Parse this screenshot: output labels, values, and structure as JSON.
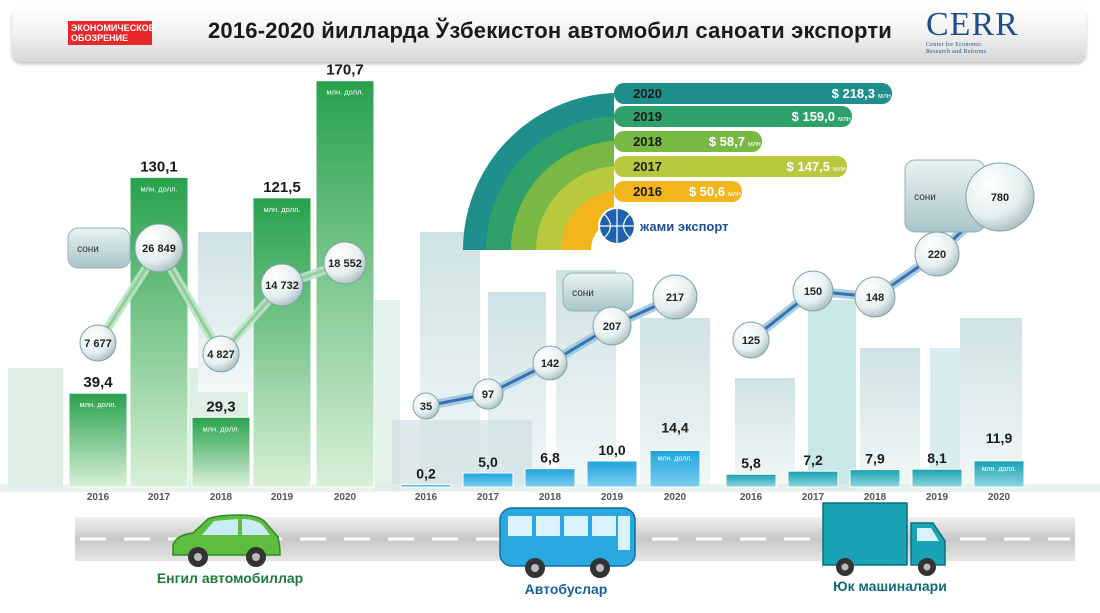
{
  "header": {
    "title": "2016-2020 йилларда Ўзбекистон автомобил саноати экспорти",
    "logo_left_line1": "ЭКОНОМИЧЕСКОЕ",
    "logo_left_line2": "ОБОЗРЕНИЕ",
    "logo_right_name": "CERR",
    "logo_right_line1": "Center for Economic",
    "logo_right_line2": "Research and Reforms"
  },
  "labels": {
    "count": "сони",
    "unit": "млн. долл.",
    "total_title": "жами экспорт",
    "total_unit": "млн."
  },
  "colors": {
    "cars": "#2ea44f",
    "buses": "#29a9e0",
    "trucks": "#1aa3b4",
    "count_line": "#3b6fb3",
    "y2020": "#1e8f8a",
    "y2019": "#2fa06a",
    "y2018": "#78b843",
    "y2017": "#b9c93d",
    "y2016": "#f2b51c"
  },
  "chart_data": [
    {
      "type": "bar",
      "title": "Енгил автомобиллар",
      "categories": [
        "2016",
        "2017",
        "2018",
        "2019",
        "2020"
      ],
      "series": [
        {
          "values": [
            39.4,
            130.1,
            29.3,
            121.5,
            170.7
          ],
          "value_labels": [
            "39,4",
            "130,1",
            "29,3",
            "121,5",
            "170,7"
          ]
        },
        {
          "values": [
            7677,
            26849,
            4827,
            14732,
            18552
          ],
          "value_labels": [
            "7 677",
            "26 849",
            "4 827",
            "14 732",
            "18 552"
          ]
        }
      ]
    },
    {
      "type": "bar",
      "title": "Автобуслар",
      "categories": [
        "2016",
        "2017",
        "2018",
        "2019",
        "2020"
      ],
      "series": [
        {
          "values": [
            0.2,
            5.0,
            6.8,
            10.0,
            14.4
          ],
          "value_labels": [
            "0,2",
            "5,0",
            "6,8",
            "10,0",
            "14,4"
          ]
        },
        {
          "values": [
            35,
            97,
            142,
            207,
            217
          ],
          "value_labels": [
            "35",
            "97",
            "142",
            "207",
            "217"
          ]
        }
      ]
    },
    {
      "type": "bar",
      "title": "Юк машиналари",
      "categories": [
        "2016",
        "2017",
        "2018",
        "2019",
        "2020"
      ],
      "series": [
        {
          "values": [
            5.8,
            7.2,
            7.9,
            8.1,
            11.9
          ],
          "value_labels": [
            "5,8",
            "7,2",
            "7,9",
            "8,1",
            "11,9"
          ]
        },
        {
          "values": [
            125,
            150,
            148,
            220,
            780
          ],
          "value_labels": [
            "125",
            "150",
            "148",
            "220",
            "780"
          ]
        }
      ]
    },
    {
      "type": "bar",
      "title": "жами экспорт",
      "categories": [
        "2016",
        "2017",
        "2018",
        "2019",
        "2020"
      ],
      "values": [
        50.6,
        147.5,
        58.7,
        159.0,
        218.3
      ],
      "value_labels": [
        "$ 50,6",
        "$ 147,5",
        "$ 58,7",
        "$ 159,0",
        "$ 218,3"
      ]
    }
  ]
}
